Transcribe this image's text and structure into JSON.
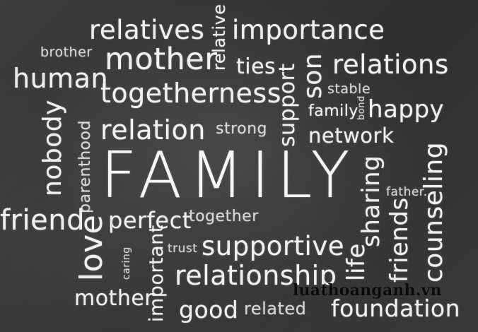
{
  "words": {
    "relatives": "relatives",
    "relative": "relative",
    "importance": "importance",
    "brother": "brother",
    "mother_top": "mother",
    "ties": "ties",
    "son": "son",
    "relations": "relations",
    "human": "human",
    "togetherness": "togetherness",
    "support_vertical": "support",
    "stable": "stable",
    "nobody": "nobody",
    "parenthood": "parenthood",
    "family_small": "family",
    "bond": "bond",
    "happy": "happy",
    "relation": "relation",
    "strong": "strong",
    "network": "network",
    "family_big": "FAMILY",
    "sharing": "sharing",
    "counseling": "counseling",
    "father": "father.",
    "friend": "friend",
    "perfect": "perfect",
    "together": "together",
    "friends": "friends",
    "love": "love",
    "caring": "caring",
    "trust": "trust",
    "supportive": "supportive",
    "life": "life",
    "important": "important",
    "relationship": "relationship",
    "mother_bottom": "mother",
    "good": "good",
    "related": "related",
    "foundation": "foundation"
  },
  "watermark": "luathoanganh.vn",
  "colors": {
    "chalkboard": "#353535",
    "chalk": "#f2f2f2",
    "watermark": "#0b0b0b"
  }
}
